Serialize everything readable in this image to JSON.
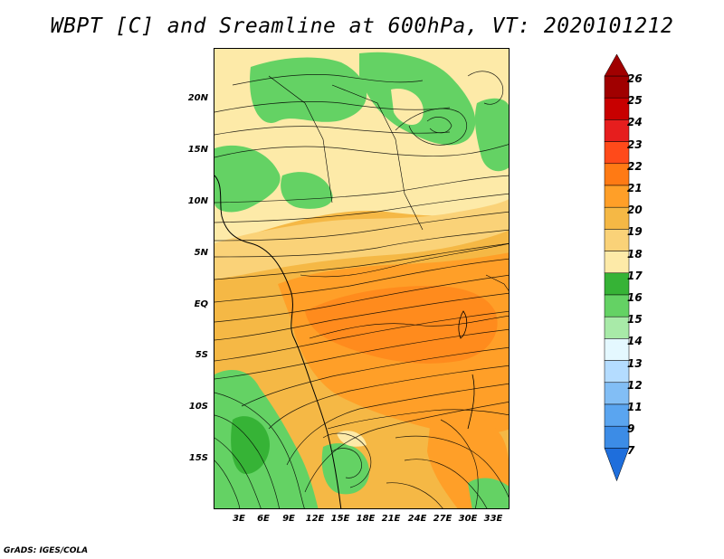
{
  "title": "WBPT [C] and Sreamline at 600hPa, VT: 2020101212",
  "lat_labels": [
    "20N",
    "15N",
    "10N",
    "5N",
    "EQ",
    "5S",
    "10S",
    "15S"
  ],
  "lon_labels": [
    "3E",
    "6E",
    "9E",
    "12E",
    "15E",
    "18E",
    "21E",
    "24E",
    "27E",
    "30E",
    "33E"
  ],
  "colorbar": {
    "levels": [
      "26",
      "25",
      "24",
      "23",
      "22",
      "21",
      "20",
      "19",
      "18",
      "17",
      "16",
      "15",
      "14",
      "13",
      "12",
      "11",
      "9",
      "7"
    ],
    "colors": [
      "#a00000",
      "#c80000",
      "#e61e1e",
      "#ff4a1a",
      "#ff7a14",
      "#ff9f28",
      "#f5b845",
      "#fad278",
      "#fdeaa8",
      "#36b336",
      "#64d264",
      "#a8eaa8",
      "#e4f8ff",
      "#b4dcff",
      "#82bef5",
      "#5aa5f0",
      "#3c8ce6",
      "#1e6edc"
    ]
  },
  "credit": "GrADS: IGES/COLA"
}
